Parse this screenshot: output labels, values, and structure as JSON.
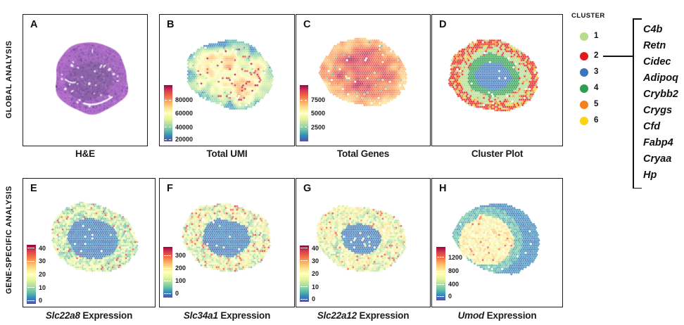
{
  "rows": [
    {
      "label": "GLOBAL ANALYSIS"
    },
    {
      "label": "GENE-SPECIFIC ANALYSIS"
    }
  ],
  "panels": [
    {
      "letter": "A",
      "caption_gene": "",
      "caption_rest": "H&E"
    },
    {
      "letter": "B",
      "caption_gene": "",
      "caption_rest": "Total UMI",
      "colorbar_ticks": [
        "80000",
        "60000",
        "40000",
        "20000"
      ]
    },
    {
      "letter": "C",
      "caption_gene": "",
      "caption_rest": "Total Genes",
      "colorbar_ticks": [
        "7500",
        "5000",
        "2500"
      ]
    },
    {
      "letter": "D",
      "caption_gene": "",
      "caption_rest": "Cluster Plot"
    },
    {
      "letter": "E",
      "caption_gene": "Slc22a8",
      "caption_rest": " Expression",
      "colorbar_ticks": [
        "40",
        "30",
        "20",
        "10",
        "0"
      ]
    },
    {
      "letter": "F",
      "caption_gene": "Slc34a1",
      "caption_rest": " Expression",
      "colorbar_ticks": [
        "300",
        "200",
        "100",
        "0"
      ]
    },
    {
      "letter": "G",
      "caption_gene": "Slc22a12",
      "caption_rest": " Expression",
      "colorbar_ticks": [
        "40",
        "30",
        "20",
        "10",
        "0"
      ]
    },
    {
      "letter": "H",
      "caption_gene": "Umod",
      "caption_rest": " Expression",
      "colorbar_ticks": [
        "1200",
        "800",
        "400",
        "0"
      ]
    }
  ],
  "legend": {
    "title": "CLUSTER",
    "items": [
      {
        "label": "1",
        "color": "#b5dd8b"
      },
      {
        "label": "2",
        "color": "#e31a1c"
      },
      {
        "label": "3",
        "color": "#3b76bc"
      },
      {
        "label": "4",
        "color": "#2e9e4e"
      },
      {
        "label": "5",
        "color": "#f5801e"
      },
      {
        "label": "6",
        "color": "#fdd20e"
      }
    ]
  },
  "gene_list": [
    "C4b",
    "Retn",
    "Cidec",
    "Adipoq",
    "Crybb2",
    "Crygs",
    "Cfd",
    "Fabp4",
    "Cryaa",
    "Hp"
  ],
  "chart_data": [
    {
      "panel": "A",
      "type": "heatmap",
      "title": "H&E",
      "description": "H&E-stained tissue section, purple oval specimen"
    },
    {
      "panel": "B",
      "type": "heatmap",
      "title": "Total UMI",
      "colormap": "Spectral reversed",
      "colorbar_ticks": [
        20000,
        40000,
        60000,
        80000
      ],
      "pattern": "cool blue-teal periphery, warm yellow-orange middle with scattered red hotspots"
    },
    {
      "panel": "C",
      "type": "heatmap",
      "title": "Total Genes",
      "colormap": "Spectral reversed",
      "colorbar_ticks": [
        2500,
        5000,
        7500
      ],
      "pattern": "mostly orange-red, darkest red in center, rare blue spots"
    },
    {
      "panel": "D",
      "type": "scatter",
      "title": "Cluster Plot",
      "clusters": [
        1,
        2,
        3,
        4,
        5,
        6
      ],
      "pattern": "blue cluster-3 core, green cluster-4 ring, light-green cluster-1 band, red/orange/yellow clusters 2,5,6 rim"
    },
    {
      "panel": "E",
      "type": "heatmap",
      "title": "Slc22a8 Expression",
      "colormap": "Spectral reversed",
      "colorbar_ticks": [
        0,
        10,
        20,
        30,
        40
      ],
      "pattern": "dark purple low-expression core, teal-yellow expressing rim"
    },
    {
      "panel": "F",
      "type": "heatmap",
      "title": "Slc34a1 Expression",
      "colormap": "Spectral reversed",
      "colorbar_ticks": [
        0,
        100,
        200,
        300
      ],
      "pattern": "dark purple core, mottled teal-yellow rim with orange-red hotspots"
    },
    {
      "panel": "G",
      "type": "heatmap",
      "title": "Slc22a12 Expression",
      "colormap": "Spectral reversed",
      "colorbar_ticks": [
        0,
        10,
        20,
        30,
        40
      ],
      "pattern": "smaller dark core, broad yellow-green mottled rim"
    },
    {
      "panel": "H",
      "type": "heatmap",
      "title": "Umod Expression",
      "colormap": "Spectral reversed",
      "colorbar_ticks": [
        0,
        400,
        800,
        1200
      ],
      "pattern": "blue-purple periphery, yellow-green high-expression central blob with red flecks"
    }
  ],
  "annotation": {
    "cluster2_marker_genes_note": "bracket links cluster 2 to gene list"
  }
}
